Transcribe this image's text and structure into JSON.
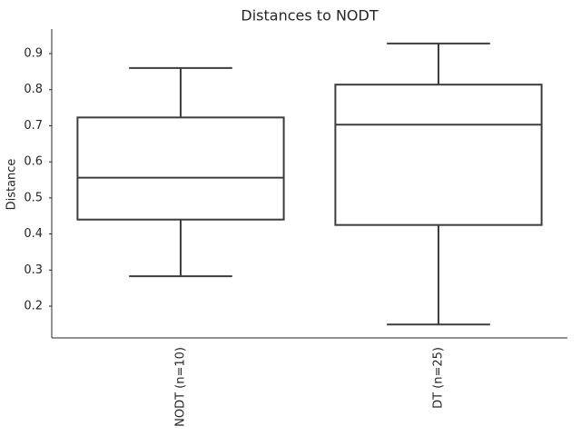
{
  "chart_data": {
    "type": "box",
    "title": "Distances to NODT",
    "y_label": "Distance",
    "categories": [
      "NODT (n=10)",
      "DT (n=25)"
    ],
    "boxes": [
      {
        "whislo": 0.283,
        "q1": 0.44,
        "med": 0.556,
        "q3": 0.723,
        "whishi": 0.86
      },
      {
        "whislo": 0.149,
        "q1": 0.425,
        "med": 0.703,
        "q3": 0.814,
        "whishi": 0.928
      }
    ],
    "color": "#3d3d3d",
    "fill": "#ffffff",
    "ylim": [
      0.112,
      0.968
    ],
    "yticks": [
      0.2,
      0.3,
      0.4,
      0.5,
      0.6,
      0.7,
      0.8,
      0.9
    ]
  }
}
